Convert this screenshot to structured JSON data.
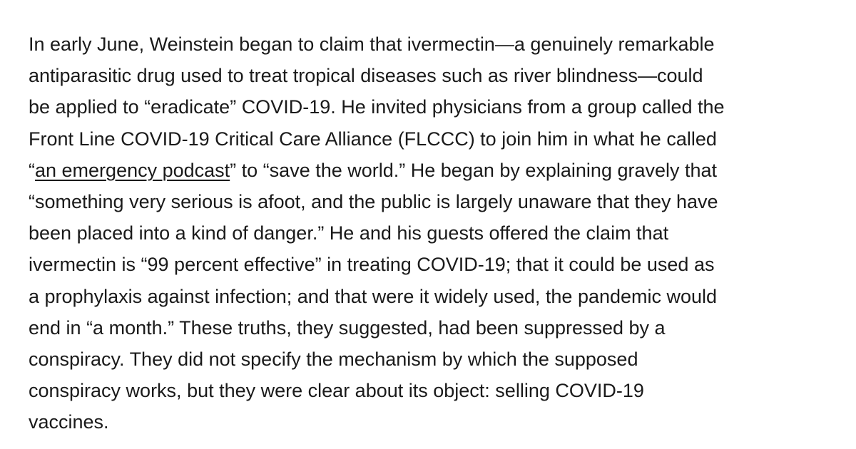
{
  "article": {
    "lines": [
      "In early June, Weinstein began to claim that ivermectin—a genuinely remarkable",
      "antiparasitic drug used to treat tropical diseases such as river blindness—could",
      "be applied to “eradicate” COVID-19. He invited physicians from a group called the",
      "Front Line COVID-19 Critical Care Alliance (FLCCC) to join him in what he called"
    ],
    "line5": {
      "before": "“",
      "link": "an emergency podcast",
      "after": "” to “save the world.” He began by explaining gravely that"
    },
    "lines_after": [
      "“something very serious is afoot, and the public is largely unaware that they have",
      "been placed into a kind of danger.” He and his guests offered the claim that",
      "ivermectin is “99 percent effective” in treating COVID-19; that it could be used as",
      "a prophylaxis against infection; and that were it widely used, the pandemic would",
      "end in “a month.” These truths, they suggested, had been suppressed by a",
      "conspiracy. They did not specify the mechanism by which the supposed",
      "conspiracy works, but they were clear about its object: selling COVID-19",
      "vaccines."
    ]
  }
}
